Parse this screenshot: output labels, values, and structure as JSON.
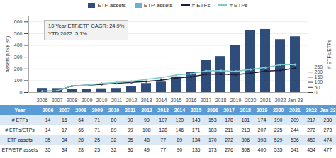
{
  "chart_data": {
    "type": "bar",
    "categories": [
      "2006",
      "2007",
      "2008",
      "2009",
      "2010",
      "2011",
      "2012",
      "2013",
      "2014",
      "2015",
      "2016",
      "2017",
      "2018",
      "2019",
      "2020",
      "2021",
      "2022",
      "Jan-23"
    ],
    "series": [
      {
        "name": "ETF assets",
        "type": "bar",
        "color": "#2e4d7b",
        "values": [
          35,
          34,
          28,
          25,
          32,
          35,
          48,
          77,
          89,
          134,
          170,
          272,
          306,
          398,
          529,
          536,
          450,
          474
        ]
      },
      {
        "name": "ETP assets",
        "type": "bar",
        "color": "#6aaed6",
        "values": [
          null,
          null,
          null,
          null,
          null,
          null,
          null,
          null,
          null,
          null,
          null,
          null,
          null,
          null,
          null,
          null,
          null,
          null
        ]
      },
      {
        "name": "# ETFs",
        "type": "line",
        "axis": "y2",
        "color": "#1f1f3d",
        "marker": "o",
        "values": [
          14,
          16,
          64,
          71,
          80,
          90,
          99,
          107,
          120,
          143,
          153,
          178,
          181,
          174,
          190,
          209,
          217,
          238
        ]
      },
      {
        "name": "# ETPs",
        "type": "line",
        "axis": "y2",
        "color": "#7ecac8",
        "marker": "o",
        "values": [
          14,
          17,
          65,
          71,
          89,
          99,
          108,
          128,
          146,
          171,
          183,
          211,
          213,
          207,
          225,
          244,
          272,
          273
        ]
      }
    ],
    "ylabel": "Assets (US$ Bn)",
    "y2label": "# ETFs/ETPs",
    "ylim": [
      0,
      650
    ],
    "yticks": [
      0,
      100,
      200,
      300,
      400,
      500,
      600
    ],
    "y2lim": [
      0,
      750
    ],
    "y2ticks": [
      0,
      50,
      100,
      150,
      200,
      250
    ],
    "grid": true,
    "legend": "top",
    "annotation": "10 Year ETF/ETP CAGR: 24.9%\nYTD 2022: 5.1%",
    "table": {
      "header": "Year",
      "color": "#5b9bd5",
      "rows": [
        {
          "label": "# ETFs",
          "color": "#dce9f5",
          "values": [
            14,
            16,
            64,
            71,
            80,
            90,
            99,
            107,
            120,
            143,
            153,
            178,
            181,
            174,
            190,
            209,
            217,
            238
          ]
        },
        {
          "label": "# ETFs/ETPs",
          "color": "#ffffff",
          "values": [
            14,
            17,
            65,
            71,
            89,
            99,
            108,
            128,
            146,
            171,
            183,
            211,
            213,
            207,
            225,
            244,
            272,
            273
          ]
        },
        {
          "label": "ETF assets",
          "color": "#dce9f5",
          "values": [
            35,
            34,
            28,
            25,
            32,
            35,
            48,
            77,
            89,
            134,
            170,
            272,
            306,
            398,
            529,
            536,
            450,
            474
          ]
        },
        {
          "label": "ETF/ETP assets",
          "color": "#ffffff",
          "values": [
            35,
            34,
            28,
            25,
            32,
            36,
            49,
            77,
            90,
            136,
            173,
            276,
            308,
            400,
            535,
            541,
            454,
            477
          ]
        }
      ]
    }
  }
}
